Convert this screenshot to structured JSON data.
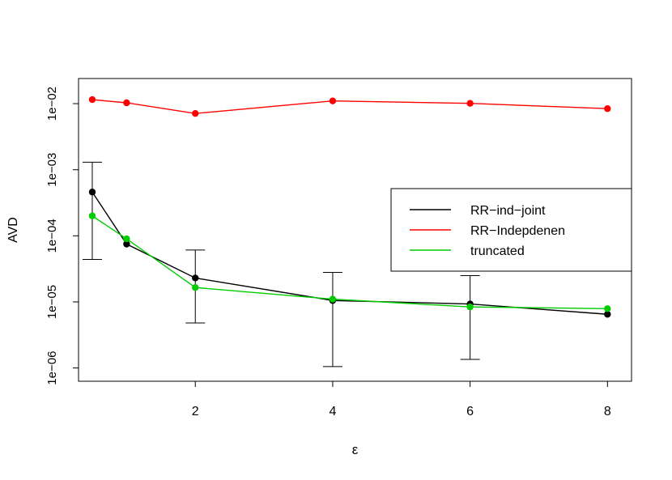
{
  "chart_data": {
    "type": "line",
    "xlabel": "ε",
    "ylabel": "AVD",
    "xlim": [
      0.3,
      8.35
    ],
    "ylim": [
      6.3e-07,
      0.024
    ],
    "yscale": "log",
    "x_ticks": [
      2,
      4,
      6,
      8
    ],
    "x_tick_labels": [
      "2",
      "4",
      "6",
      "8"
    ],
    "y_ticks": [
      1e-06,
      1e-05,
      0.0001,
      0.001,
      0.01
    ],
    "y_tick_labels": [
      "1e−06",
      "1e−05",
      "1e−04",
      "1e−03",
      "1e−02"
    ],
    "grid": false,
    "legend": "right",
    "x": [
      0.5,
      1,
      2,
      4,
      6,
      8
    ],
    "series": [
      {
        "name": "RR−ind−joint",
        "color": "#000000",
        "values": [
          0.00046,
          7.5e-05,
          2.3e-05,
          1.05e-05,
          9.3e-06,
          6.5e-06
        ],
        "error_low": [
          4.4e-05,
          null,
          4.8e-06,
          1.05e-06,
          1.35e-06,
          null
        ],
        "error_high": [
          0.0013,
          null,
          6.1e-05,
          2.8e-05,
          2.5e-05,
          null
        ]
      },
      {
        "name": "RR−Indepdenen",
        "color": "#ff0000",
        "values": [
          0.0115,
          0.0103,
          0.0071,
          0.011,
          0.0101,
          0.0084
        ]
      },
      {
        "name": "truncated",
        "color": "#00cc00",
        "values": [
          0.0002,
          9e-05,
          1.65e-05,
          1.1e-05,
          8.4e-06,
          7.9e-06
        ]
      }
    ]
  }
}
